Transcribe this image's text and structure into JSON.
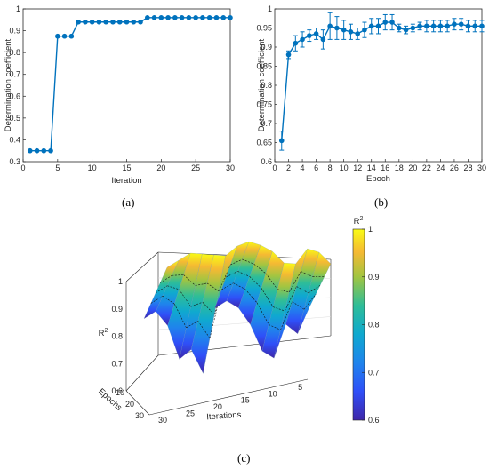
{
  "chart_data": [
    {
      "panel": "(a)",
      "type": "line",
      "xlabel": "Iteration",
      "ylabel": "Determination coefficient",
      "xlim": [
        0,
        30
      ],
      "ylim": [
        0.3,
        1
      ],
      "xticks": [
        0,
        5,
        10,
        15,
        20,
        25,
        30
      ],
      "yticks": [
        0.3,
        0.4,
        0.5,
        0.6,
        0.7,
        0.8,
        0.9,
        1
      ],
      "grid": false,
      "style": "stairs-markers",
      "color": "#0072BD",
      "x": [
        1,
        2,
        3,
        4,
        5,
        6,
        7,
        8,
        9,
        10,
        11,
        12,
        13,
        14,
        15,
        16,
        17,
        18,
        19,
        20,
        21,
        22,
        23,
        24,
        25,
        26,
        27,
        28,
        29,
        30
      ],
      "y": [
        0.35,
        0.35,
        0.35,
        0.35,
        0.875,
        0.875,
        0.875,
        0.94,
        0.94,
        0.94,
        0.94,
        0.94,
        0.94,
        0.94,
        0.94,
        0.94,
        0.94,
        0.96,
        0.96,
        0.96,
        0.96,
        0.96,
        0.96,
        0.96,
        0.96,
        0.96,
        0.96,
        0.96,
        0.96,
        0.96
      ]
    },
    {
      "panel": "(b)",
      "type": "line",
      "xlabel": "Epoch",
      "ylabel": "Determination coefficient",
      "xlim": [
        0,
        30
      ],
      "ylim": [
        0.6,
        1
      ],
      "xticks": [
        0,
        2,
        4,
        6,
        8,
        10,
        12,
        14,
        16,
        18,
        20,
        22,
        24,
        26,
        28,
        30
      ],
      "yticks": [
        0.6,
        0.65,
        0.7,
        0.75,
        0.8,
        0.85,
        0.9,
        0.95,
        1
      ],
      "grid": false,
      "style": "errorbar",
      "color": "#0072BD",
      "x": [
        1,
        2,
        3,
        4,
        5,
        6,
        7,
        8,
        9,
        10,
        11,
        12,
        13,
        14,
        15,
        16,
        17,
        18,
        19,
        20,
        21,
        22,
        23,
        24,
        25,
        26,
        27,
        28,
        29,
        30
      ],
      "y": [
        0.655,
        0.88,
        0.91,
        0.92,
        0.93,
        0.935,
        0.92,
        0.955,
        0.95,
        0.945,
        0.94,
        0.935,
        0.945,
        0.955,
        0.955,
        0.965,
        0.965,
        0.95,
        0.945,
        0.95,
        0.955,
        0.955,
        0.955,
        0.955,
        0.955,
        0.96,
        0.96,
        0.955,
        0.955,
        0.955
      ],
      "err": [
        0.025,
        0.01,
        0.02,
        0.02,
        0.015,
        0.015,
        0.025,
        0.035,
        0.03,
        0.025,
        0.02,
        0.015,
        0.02,
        0.02,
        0.02,
        0.02,
        0.02,
        0.01,
        0.01,
        0.01,
        0.01,
        0.015,
        0.015,
        0.015,
        0.015,
        0.015,
        0.015,
        0.015,
        0.015,
        0.015
      ]
    },
    {
      "panel": "(c)",
      "type": "surface",
      "xlabel": "Iterations",
      "ylabel": "Epochs",
      "zlabel": "R²",
      "xticks": [
        30,
        25,
        20,
        15,
        10,
        5
      ],
      "yticks": [
        30,
        20,
        10
      ],
      "zticks": [
        0.6,
        0.7,
        0.8,
        0.9,
        1
      ],
      "zlim": [
        0.6,
        1
      ],
      "colormap": "parula",
      "colorbar": {
        "title": "R²",
        "ticks": [
          0.6,
          0.7,
          0.8,
          0.9,
          1
        ]
      },
      "iterations": [
        30,
        28,
        26,
        24,
        22,
        20,
        18,
        16,
        14,
        12,
        10,
        8,
        6,
        4,
        2
      ],
      "front_edge_values": [
        0.9,
        0.92,
        0.85,
        0.7,
        0.73,
        0.62,
        0.88,
        0.9,
        0.86,
        0.78,
        0.66,
        0.62,
        0.75,
        0.7,
        0.8
      ],
      "back_edge_values": [
        0.93,
        0.95,
        0.97,
        0.96,
        0.95,
        0.94,
        0.97,
        0.98,
        0.96,
        0.93,
        0.88,
        0.87,
        0.92,
        0.9,
        0.85
      ]
    }
  ],
  "labels": {
    "a": "(a)",
    "b": "(b)",
    "c": "(c)"
  }
}
